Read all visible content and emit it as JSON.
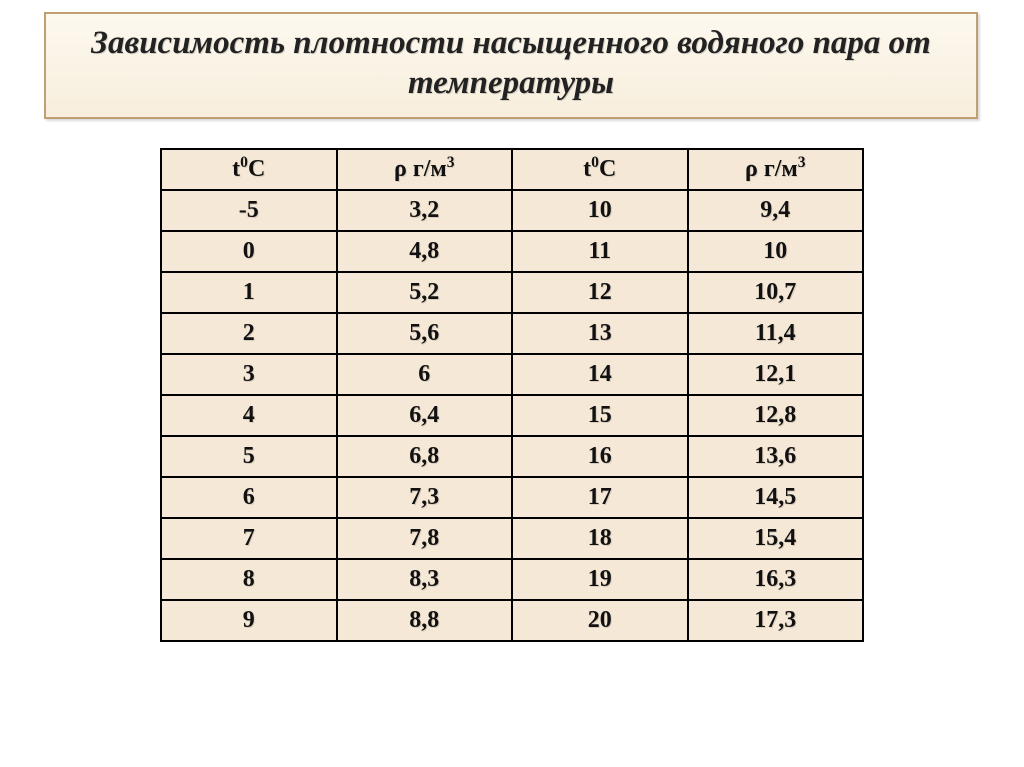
{
  "title": "Зависимость плотности насыщенного водяного пара от температуры",
  "table": {
    "background_color": "#f6e8d6",
    "border_color": "#000000",
    "font_family": "Times New Roman",
    "header_fontsize": 24,
    "cell_fontsize": 24,
    "columns": [
      {
        "label_html": "t<sup>0</sup>C"
      },
      {
        "label_html": "ρ г/м<sup>3</sup>"
      },
      {
        "label_html": "t<sup>0</sup>C"
      },
      {
        "label_html": "ρ г/м<sup>3</sup>"
      }
    ],
    "rows": [
      [
        "-5",
        "3,2",
        "10",
        "9,4"
      ],
      [
        "0",
        "4,8",
        "11",
        "10"
      ],
      [
        "1",
        "5,2",
        "12",
        "10,7"
      ],
      [
        "2",
        "5,6",
        "13",
        "11,4"
      ],
      [
        "3",
        "6",
        "14",
        "12,1"
      ],
      [
        "4",
        "6,4",
        "15",
        "12,8"
      ],
      [
        "5",
        "6,8",
        "16",
        "13,6"
      ],
      [
        "6",
        "7,3",
        "17",
        "14,5"
      ],
      [
        "7",
        "7,8",
        "18",
        "15,4"
      ],
      [
        "8",
        "8,3",
        "19",
        "16,3"
      ],
      [
        "9",
        "8,8",
        "20",
        "17,3"
      ]
    ]
  },
  "title_box": {
    "border_color": "#c0a070",
    "bg_gradient_top": "#fdf8ef",
    "bg_gradient_bottom": "#f7eedc",
    "title_fontsize": 33,
    "title_style": "italic bold"
  }
}
